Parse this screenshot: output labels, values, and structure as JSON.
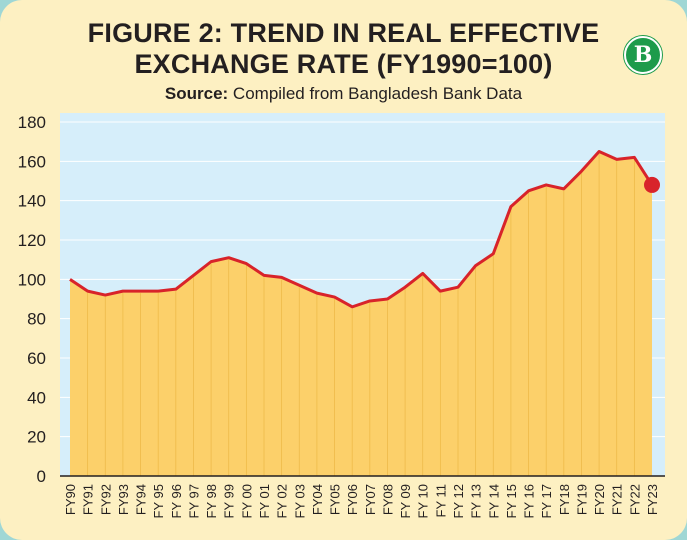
{
  "title_line1": "FIGURE 2: TREND IN REAL EFFECTIVE",
  "title_line2": "EXCHANGE RATE (FY1990=100)",
  "source_label": "Source:",
  "source_text": "Compiled from Bangladesh Bank Data",
  "logo_text": "B",
  "colors": {
    "background": "#9fd7d5",
    "card": "#fdf0c2",
    "plot_bg": "#d6eefa",
    "area_fill": "#fcd06a",
    "line": "#d8232a",
    "bar_divider": "#e3a92f",
    "marker": "#d8232a"
  },
  "chart_data": {
    "type": "area",
    "title": "FIGURE 2: TREND IN REAL EFFECTIVE EXCHANGE RATE (FY1990=100)",
    "xlabel": "",
    "ylabel": "",
    "ylim": [
      0,
      180
    ],
    "yticks": [
      0,
      20,
      40,
      60,
      80,
      100,
      120,
      140,
      160,
      180
    ],
    "grid": true,
    "categories": [
      "FY90",
      "FY91",
      "FY92",
      "FY93",
      "FY94",
      "FY 95",
      "FY 96",
      "FY 97",
      "FY 98",
      "FY 99",
      "FY 00",
      "FY 01",
      "FY 02",
      "FY 03",
      "FY04",
      "FY05",
      "FY06",
      "FY07",
      "FY08",
      "FY 09",
      "FY 10",
      "FY 11",
      "FY 12",
      "FY 13",
      "FY 14",
      "FY 15",
      "FY 16",
      "FY 17",
      "FY18",
      "FY19",
      "FY20",
      "FY21",
      "FY22",
      "FY23"
    ],
    "series": [
      {
        "values": [
          100,
          94,
          92,
          94,
          94,
          94,
          95,
          102,
          109,
          111,
          108,
          102,
          101,
          97,
          93,
          91,
          86,
          89,
          90,
          96,
          103,
          94,
          96,
          107,
          113,
          137,
          145,
          148,
          146,
          155,
          165,
          161,
          162,
          148
        ]
      }
    ],
    "highlight_last_point": true
  }
}
